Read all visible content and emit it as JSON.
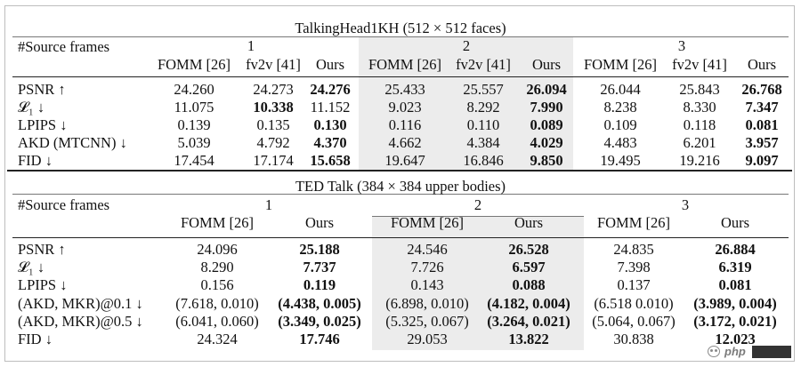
{
  "table1": {
    "title": "TalkingHead1KH (512 × 512 faces)",
    "row_header": "#Source frames",
    "groups": [
      "1",
      "2",
      "3"
    ],
    "columns": [
      "FOMM [26]",
      "fv2v [41]",
      "Ours",
      "FOMM [26]",
      "fv2v [41]",
      "Ours",
      "FOMM [26]",
      "fv2v [41]",
      "Ours"
    ],
    "rows": [
      {
        "metric": "PSNR ↑",
        "values": [
          "24.260",
          "24.273",
          "24.276",
          "25.433",
          "25.557",
          "26.094",
          "26.044",
          "25.843",
          "26.768"
        ],
        "bold": [
          2,
          5,
          8
        ]
      },
      {
        "metric": "𝓛₁ ↓",
        "values": [
          "11.075",
          "10.338",
          "11.152",
          "9.023",
          "8.292",
          "7.990",
          "8.238",
          "8.330",
          "7.347"
        ],
        "bold": [
          1,
          5,
          8
        ]
      },
      {
        "metric": "LPIPS ↓",
        "values": [
          "0.139",
          "0.135",
          "0.130",
          "0.116",
          "0.110",
          "0.089",
          "0.109",
          "0.118",
          "0.081"
        ],
        "bold": [
          2,
          5,
          8
        ]
      },
      {
        "metric": "AKD (MTCNN) ↓",
        "values": [
          "5.039",
          "4.792",
          "4.370",
          "4.662",
          "4.384",
          "4.029",
          "4.483",
          "6.201",
          "3.957"
        ],
        "bold": [
          2,
          5,
          8
        ]
      },
      {
        "metric": "FID ↓",
        "values": [
          "17.454",
          "17.174",
          "15.658",
          "19.647",
          "16.846",
          "9.850",
          "19.495",
          "19.216",
          "9.097"
        ],
        "bold": [
          2,
          5,
          8
        ]
      }
    ]
  },
  "table2": {
    "title": "TED Talk (384 × 384 upper bodies)",
    "row_header": "#Source frames",
    "groups": [
      "1",
      "2",
      "3"
    ],
    "columns": [
      "FOMM [26]",
      "Ours",
      "FOMM [26]",
      "Ours",
      "FOMM [26]",
      "Ours"
    ],
    "rows": [
      {
        "metric": "PSNR ↑",
        "values": [
          "24.096",
          "25.188",
          "24.546",
          "26.528",
          "24.835",
          "26.884"
        ],
        "bold": [
          1,
          3,
          5
        ]
      },
      {
        "metric": "𝓛₁ ↓",
        "values": [
          "8.290",
          "7.737",
          "7.726",
          "6.597",
          "7.398",
          "6.319"
        ],
        "bold": [
          1,
          3,
          5
        ]
      },
      {
        "metric": "LPIPS ↓",
        "values": [
          "0.156",
          "0.119",
          "0.143",
          "0.088",
          "0.137",
          "0.081"
        ],
        "bold": [
          1,
          3,
          5
        ]
      },
      {
        "metric": "(AKD, MKR)@0.1 ↓",
        "values": [
          "(7.618, 0.010)",
          "(4.438, 0.005)",
          "(6.898, 0.010)",
          "(4.182, 0.004)",
          "(6.518 0.010)",
          "(3.989, 0.004)"
        ],
        "bold": [
          1,
          3,
          5
        ]
      },
      {
        "metric": "(AKD, MKR)@0.5 ↓",
        "values": [
          "(6.041, 0.060)",
          "(3.349, 0.025)",
          "(5.325, 0.067)",
          "(3.264, 0.021)",
          "(5.064, 0.067)",
          "(3.172, 0.021)"
        ],
        "bold": [
          1,
          3,
          5
        ]
      },
      {
        "metric": "FID ↓",
        "values": [
          "24.324",
          "17.746",
          "29.053",
          "13.822",
          "30.838",
          "12.023"
        ],
        "bold": [
          1,
          3,
          5
        ]
      }
    ]
  },
  "watermark": {
    "text": "php"
  },
  "colors": {
    "shade": "#ececec",
    "rule": "#222222"
  }
}
